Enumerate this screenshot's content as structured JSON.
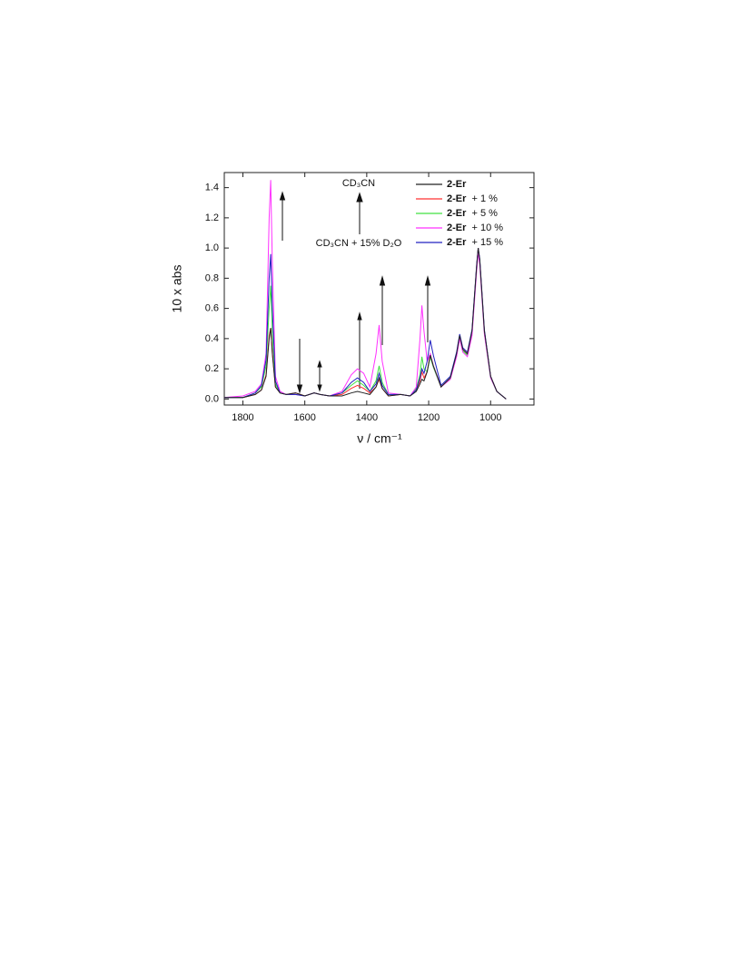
{
  "chart_data": {
    "type": "line",
    "xlabel": "ν / cm⁻¹",
    "ylabel": "10 x abs",
    "annotations": [
      "CD₃CN",
      "CD₃CN + 15% D₂O"
    ],
    "x": [
      1860,
      1800,
      1760,
      1740,
      1725,
      1715,
      1710,
      1705,
      1695,
      1680,
      1660,
      1630,
      1600,
      1570,
      1550,
      1520,
      1480,
      1450,
      1430,
      1410,
      1390,
      1370,
      1360,
      1350,
      1330,
      1290,
      1260,
      1240,
      1228,
      1222,
      1215,
      1205,
      1195,
      1185,
      1160,
      1130,
      1110,
      1100,
      1090,
      1075,
      1060,
      1045,
      1040,
      1035,
      1020,
      1000,
      980,
      950
    ],
    "series": [
      {
        "name": "2-Er  + 1 %",
        "color": "#ff3030",
        "values": [
          0.01,
          0.01,
          0.03,
          0.06,
          0.16,
          0.42,
          0.47,
          0.31,
          0.08,
          0.04,
          0.03,
          0.04,
          0.02,
          0.04,
          0.03,
          0.02,
          0.03,
          0.07,
          0.09,
          0.07,
          0.04,
          0.08,
          0.13,
          0.07,
          0.02,
          0.03,
          0.02,
          0.06,
          0.12,
          0.18,
          0.14,
          0.18,
          0.3,
          0.22,
          0.08,
          0.14,
          0.3,
          0.42,
          0.33,
          0.3,
          0.45,
          0.88,
          1.0,
          0.92,
          0.45,
          0.15,
          0.05,
          0.0
        ]
      },
      {
        "name": "2-Er  + 5 %",
        "color": "#40e040",
        "values": [
          0.01,
          0.01,
          0.04,
          0.08,
          0.22,
          0.6,
          0.75,
          0.45,
          0.1,
          0.04,
          0.03,
          0.03,
          0.02,
          0.04,
          0.03,
          0.02,
          0.04,
          0.09,
          0.12,
          0.09,
          0.05,
          0.12,
          0.22,
          0.11,
          0.03,
          0.03,
          0.02,
          0.07,
          0.16,
          0.28,
          0.2,
          0.18,
          0.28,
          0.21,
          0.08,
          0.14,
          0.3,
          0.41,
          0.32,
          0.29,
          0.44,
          0.87,
          0.99,
          0.91,
          0.44,
          0.14,
          0.05,
          0.0
        ]
      },
      {
        "name": "2-Er  + 10 %",
        "color": "#ff30ff",
        "values": [
          0.01,
          0.02,
          0.05,
          0.1,
          0.3,
          1.2,
          1.45,
          0.9,
          0.15,
          0.05,
          0.03,
          0.03,
          0.02,
          0.04,
          0.03,
          0.02,
          0.05,
          0.16,
          0.2,
          0.17,
          0.08,
          0.3,
          0.49,
          0.25,
          0.04,
          0.03,
          0.02,
          0.08,
          0.4,
          0.62,
          0.45,
          0.25,
          0.3,
          0.22,
          0.08,
          0.13,
          0.28,
          0.4,
          0.31,
          0.28,
          0.42,
          0.85,
          0.97,
          0.89,
          0.43,
          0.14,
          0.05,
          0.0
        ]
      },
      {
        "name": "2-Er  + 15 %",
        "color": "#2020c0",
        "values": [
          0.01,
          0.01,
          0.04,
          0.09,
          0.26,
          0.8,
          0.96,
          0.6,
          0.12,
          0.04,
          0.03,
          0.03,
          0.02,
          0.04,
          0.03,
          0.02,
          0.04,
          0.11,
          0.14,
          0.11,
          0.05,
          0.1,
          0.17,
          0.09,
          0.03,
          0.03,
          0.02,
          0.06,
          0.14,
          0.2,
          0.17,
          0.25,
          0.39,
          0.29,
          0.09,
          0.15,
          0.31,
          0.43,
          0.34,
          0.31,
          0.46,
          0.89,
          1.0,
          0.93,
          0.46,
          0.15,
          0.05,
          0.0
        ]
      },
      {
        "name": "2-Er",
        "color": "#222222",
        "values": [
          0.01,
          0.01,
          0.03,
          0.06,
          0.15,
          0.4,
          0.47,
          0.3,
          0.08,
          0.04,
          0.03,
          0.04,
          0.02,
          0.04,
          0.03,
          0.02,
          0.02,
          0.04,
          0.05,
          0.04,
          0.03,
          0.08,
          0.14,
          0.07,
          0.02,
          0.03,
          0.02,
          0.05,
          0.1,
          0.13,
          0.12,
          0.18,
          0.29,
          0.22,
          0.08,
          0.14,
          0.3,
          0.42,
          0.33,
          0.3,
          0.45,
          0.88,
          1.0,
          0.92,
          0.45,
          0.15,
          0.05,
          0.0
        ]
      }
    ],
    "legend_order": [
      4,
      0,
      1,
      2,
      3
    ],
    "xlim": [
      1860,
      860
    ],
    "ylim": [
      -0.04,
      1.5
    ],
    "xticks": [
      1800,
      1600,
      1400,
      1200,
      1000
    ],
    "yticks": [
      {
        "value": 0,
        "label": "0.0"
      },
      0.2,
      0.4,
      0.6,
      0.8,
      {
        "value": 1,
        "label": "1.0"
      },
      1.2,
      1.4
    ]
  }
}
